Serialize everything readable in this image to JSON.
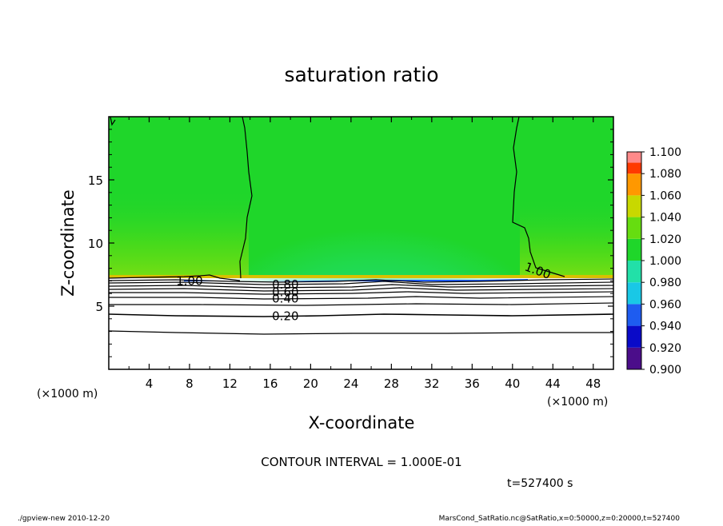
{
  "chart_data": {
    "type": "heatmap",
    "title": "saturation ratio",
    "xlabel": "X-coordinate",
    "ylabel": "Z-coordinate",
    "x_unit_left": "(×1000 m)",
    "x_unit_right": "(×1000 m)",
    "xlim": [
      0,
      50
    ],
    "ylim": [
      0,
      20
    ],
    "x_ticks": [
      4,
      8,
      12,
      16,
      20,
      24,
      28,
      32,
      36,
      40,
      44,
      48
    ],
    "y_ticks": [
      5,
      10,
      15
    ],
    "grid": false,
    "colorbar": {
      "position": "right",
      "levels": [
        "0.900",
        "0.920",
        "0.940",
        "0.960",
        "0.980",
        "1.000",
        "1.020",
        "1.040",
        "1.060",
        "1.080",
        "1.100"
      ],
      "colors": [
        "#4b0d8a",
        "#0a0ac8",
        "#1e5cf0",
        "#19c8e6",
        "#22e0a8",
        "#1fd62a",
        "#66dd10",
        "#c8d800",
        "#ff9800",
        "#ff3a00",
        "#ff8a8a"
      ]
    },
    "contour_labels": [
      {
        "text": "1.00",
        "x": 42.5,
        "z": 7.8
      },
      {
        "text": "0.80",
        "x": 17.5,
        "z": 6.7
      },
      {
        "text": "0.60",
        "x": 17.5,
        "z": 6.1
      },
      {
        "text": "0.40",
        "x": 17.5,
        "z": 5.6
      },
      {
        "text": "0.20",
        "x": 17.5,
        "z": 4.2
      },
      {
        "text": "1.00",
        "x": 8.0,
        "z": 7.0
      }
    ],
    "contour_interval_text": "CONTOUR INTERVAL = 1.000E-01",
    "time_label": "t=527400 s"
  },
  "footer": {
    "left": "./gpview-new  2010-12-20",
    "right": "MarsCond_SatRatio.nc@SatRatio,x=0:50000,z=0:20000,t=527400"
  },
  "colors": {
    "background": "#ffffff",
    "field_green": "#1fd62a",
    "field_light_green": "#66dd10",
    "field_cyan": "#22e0a8",
    "lower_white": "#ffffff"
  }
}
